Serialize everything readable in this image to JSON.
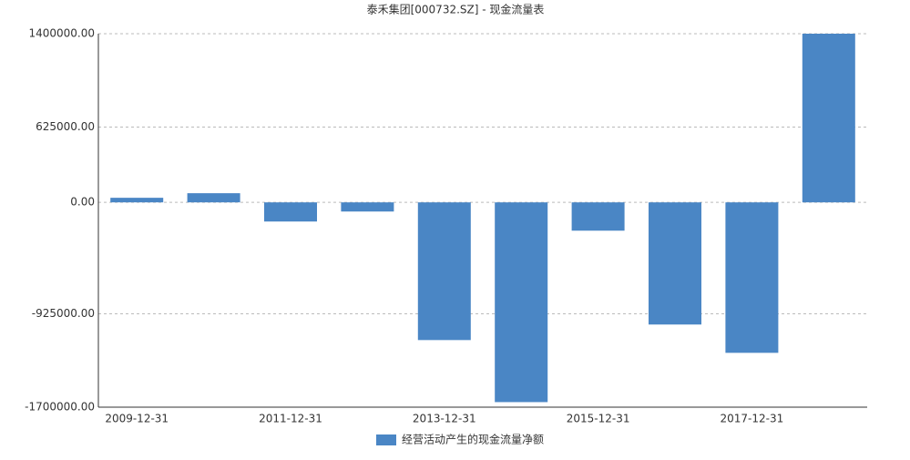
{
  "chart_data": {
    "type": "bar",
    "title": "泰禾集团[000732.SZ] - 现金流量表",
    "categories": [
      "2009-12-31",
      null,
      "2011-12-31",
      null,
      "2013-12-31",
      null,
      "2015-12-31",
      null,
      "2017-12-31",
      null
    ],
    "series": [
      {
        "name": "经营活动产生的现金流量净额",
        "color": "#4a86c5",
        "values": [
          38000,
          76000,
          -159000,
          -76000,
          -1143000,
          -1658000,
          -235000,
          -1014000,
          -1249000,
          1400000
        ]
      }
    ],
    "ylim": [
      -1700000,
      1400000
    ],
    "yticks": [
      {
        "value": -1700000,
        "label": "-1700000.00"
      },
      {
        "value": -925000,
        "label": "-925000.00"
      },
      {
        "value": 0,
        "label": "0.00"
      },
      {
        "value": 625000,
        "label": "625000.00"
      },
      {
        "value": 1400000,
        "label": "1400000.00"
      }
    ],
    "grid": true
  }
}
